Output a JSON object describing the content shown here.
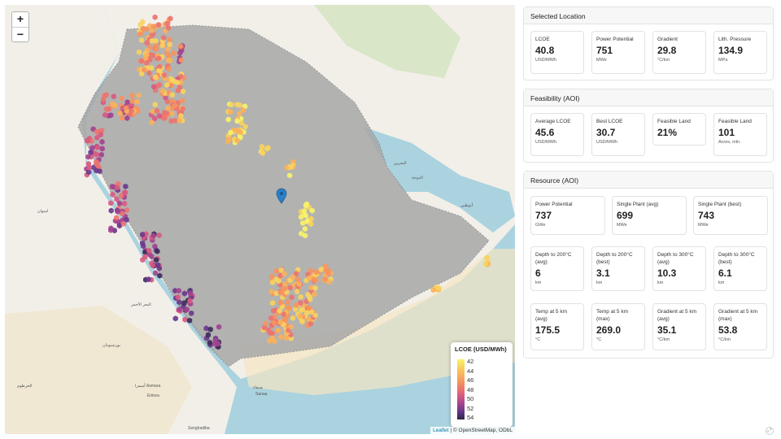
{
  "map": {
    "zoom_in": "+",
    "zoom_out": "−",
    "legend": {
      "title": "LCOE (USD/MWh)",
      "ticks": [
        "42",
        "44",
        "46",
        "48",
        "50",
        "52",
        "54"
      ]
    },
    "attribution": {
      "leaflet": "Leaflet",
      "rest": "| © OpenStreetMap, ODbL"
    },
    "place_labels": [
      "البحر الأحمر",
      "اسوان",
      "بورتسودان",
      "أسمرا Asmara",
      "Eritrea",
      "صنعاء",
      "Sanaa",
      "البحرين",
      "الدوحة",
      "أبوظبي",
      "Senghadiba",
      "الخرطوم"
    ]
  },
  "selected_location": {
    "title": "Selected Location",
    "cards": [
      {
        "label": "LCOE",
        "value": "40.8",
        "unit": "USD/MWh"
      },
      {
        "label": "Power Potential",
        "value": "751",
        "unit": "MWe"
      },
      {
        "label": "Gradient",
        "value": "29.8",
        "unit": "°C/km"
      },
      {
        "label": "Lith. Pressure",
        "value": "134.9",
        "unit": "MPa"
      }
    ]
  },
  "feasibility": {
    "title": "Feasibility (AOI)",
    "cards": [
      {
        "label": "Average LCOE",
        "value": "45.6",
        "unit": "USD/MWh"
      },
      {
        "label": "Best LCOE",
        "value": "30.7",
        "unit": "USD/MWh"
      },
      {
        "label": "Feasible Land",
        "value": "21%",
        "unit": ""
      },
      {
        "label": "Feasible Land",
        "value": "101",
        "unit": "Acres, mln."
      }
    ]
  },
  "resource": {
    "title": "Resource (AOI)",
    "row1": [
      {
        "label": "Power Potential",
        "value": "737",
        "unit": "GWe"
      },
      {
        "label": "Single Plant (avg)",
        "value": "699",
        "unit": "MWe"
      },
      {
        "label": "Single Plant (best)",
        "value": "743",
        "unit": "MWe"
      }
    ],
    "row2": [
      {
        "label": "Depth to 200°C (avg)",
        "value": "6",
        "unit": "km"
      },
      {
        "label": "Depth to 200°C (best)",
        "value": "3.1",
        "unit": "km"
      },
      {
        "label": "Depth to 300°C (avg)",
        "value": "10.3",
        "unit": "km"
      },
      {
        "label": "Depth to 300°C (best)",
        "value": "6.1",
        "unit": "km"
      }
    ],
    "row3": [
      {
        "label": "Temp at 5 km (avg)",
        "value": "175.5",
        "unit": "°C"
      },
      {
        "label": "Temp at 5 km (max)",
        "value": "269.0",
        "unit": "°C"
      },
      {
        "label": "Gradient at 5 km (avg)",
        "value": "35.1",
        "unit": "°C/km"
      },
      {
        "label": "Gradient at 5 km (max)",
        "value": "53.8",
        "unit": "°C/km"
      }
    ]
  },
  "colors": {
    "water": "#aad3df",
    "land": "#f2efe9",
    "aoi": "#a8a8a8",
    "hex_low": "#f9f26a",
    "hex_high": "#2c2640"
  }
}
